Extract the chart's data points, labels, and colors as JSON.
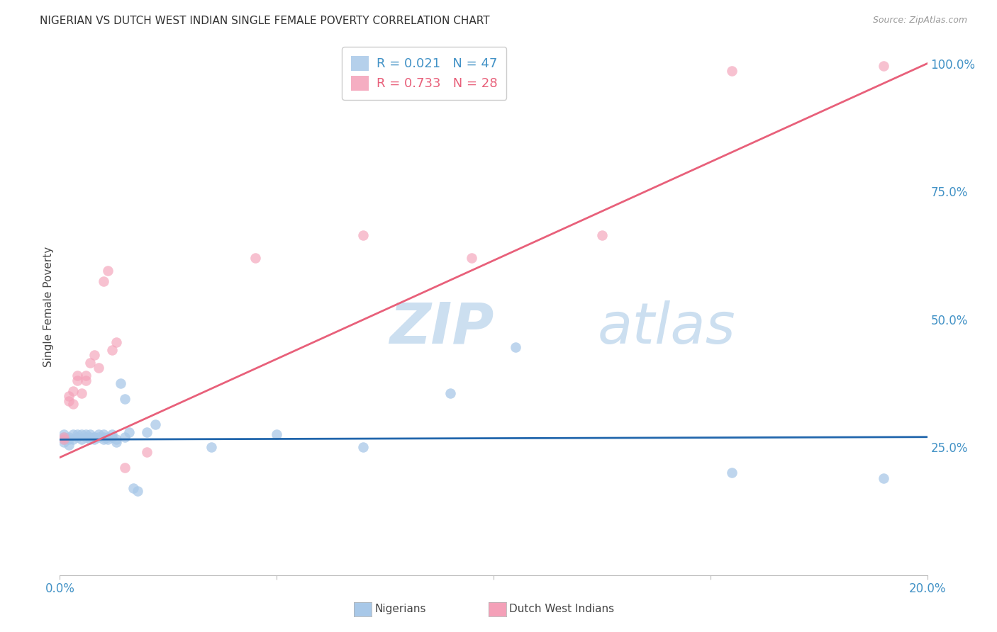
{
  "title": "NIGERIAN VS DUTCH WEST INDIAN SINGLE FEMALE POVERTY CORRELATION CHART",
  "source": "Source: ZipAtlas.com",
  "ylabel": "Single Female Poverty",
  "ytick_labels": [
    "100.0%",
    "75.0%",
    "50.0%",
    "25.0%"
  ],
  "ytick_values": [
    1.0,
    0.75,
    0.5,
    0.25
  ],
  "legend_label1": "Nigerians",
  "legend_label2": "Dutch West Indians",
  "r1": "0.021",
  "n1": "47",
  "r2": "0.733",
  "n2": "28",
  "blue_color": "#a8c8e8",
  "pink_color": "#f4a0b8",
  "blue_line_color": "#2166ac",
  "pink_line_color": "#e8607a",
  "text_color_blue": "#4292c6",
  "text_color_pink": "#e8607a",
  "watermark_color": "#ddeef8",
  "background_color": "#ffffff",
  "grid_color": "#cccccc",
  "nigerians_x": [
    0.001,
    0.001,
    0.001,
    0.001,
    0.002,
    0.002,
    0.002,
    0.003,
    0.003,
    0.004,
    0.004,
    0.005,
    0.005,
    0.006,
    0.006,
    0.007,
    0.007,
    0.007,
    0.008,
    0.008,
    0.008,
    0.009,
    0.009,
    0.01,
    0.01,
    0.01,
    0.011,
    0.011,
    0.012,
    0.012,
    0.013,
    0.013,
    0.014,
    0.015,
    0.015,
    0.016,
    0.017,
    0.018,
    0.02,
    0.022,
    0.035,
    0.05,
    0.07,
    0.09,
    0.105,
    0.155,
    0.19
  ],
  "nigerians_y": [
    0.265,
    0.27,
    0.26,
    0.275,
    0.265,
    0.27,
    0.255,
    0.275,
    0.265,
    0.27,
    0.275,
    0.265,
    0.275,
    0.27,
    0.275,
    0.27,
    0.265,
    0.275,
    0.27,
    0.265,
    0.27,
    0.27,
    0.275,
    0.265,
    0.27,
    0.275,
    0.27,
    0.265,
    0.275,
    0.27,
    0.26,
    0.265,
    0.375,
    0.27,
    0.345,
    0.28,
    0.17,
    0.165,
    0.28,
    0.295,
    0.25,
    0.275,
    0.25,
    0.355,
    0.445,
    0.2,
    0.19
  ],
  "dutch_x": [
    0.001,
    0.001,
    0.002,
    0.002,
    0.003,
    0.003,
    0.004,
    0.004,
    0.005,
    0.006,
    0.006,
    0.007,
    0.008,
    0.009,
    0.01,
    0.011,
    0.012,
    0.013,
    0.015,
    0.02,
    0.045,
    0.07,
    0.085,
    0.09,
    0.095,
    0.125,
    0.155,
    0.19
  ],
  "dutch_y": [
    0.265,
    0.27,
    0.34,
    0.35,
    0.335,
    0.36,
    0.38,
    0.39,
    0.355,
    0.38,
    0.39,
    0.415,
    0.43,
    0.405,
    0.575,
    0.595,
    0.44,
    0.455,
    0.21,
    0.24,
    0.62,
    0.665,
    0.985,
    0.955,
    0.62,
    0.665,
    0.985,
    0.995
  ],
  "xlim": [
    0.0,
    0.2
  ],
  "ylim": [
    0.0,
    1.05
  ],
  "blue_line_x": [
    0.0,
    0.2
  ],
  "blue_line_y": [
    0.265,
    0.27
  ],
  "pink_line_x": [
    0.0,
    0.2
  ],
  "pink_line_y": [
    0.23,
    1.0
  ]
}
